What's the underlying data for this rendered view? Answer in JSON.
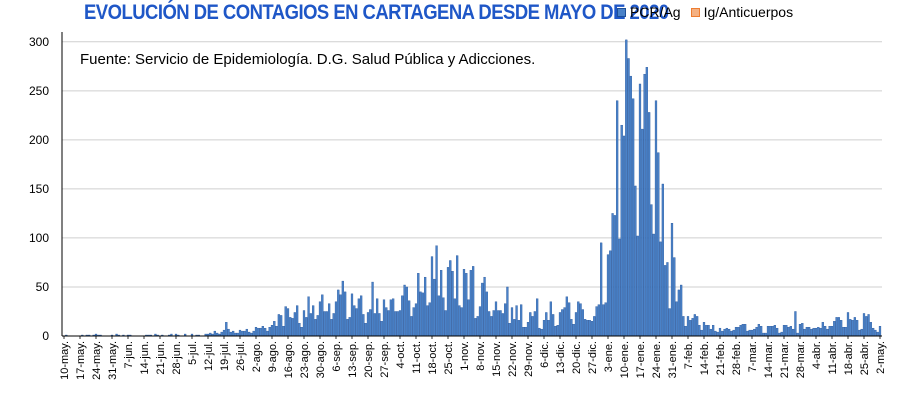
{
  "chart_data": {
    "type": "bar",
    "title": "EVOLUCIÓN DE CONTAGIOS EN CARTAGENA DESDE MAYO DE 2020",
    "annotation": "Fuente: Servicio de Epidemiología. D.G. Salud Pública y Adicciones.",
    "xlabel": "",
    "ylabel": "",
    "ylim": [
      0,
      310
    ],
    "yticks": [
      0,
      50,
      100,
      150,
      200,
      250,
      300
    ],
    "grid": true,
    "legend_position": "top-right",
    "x_start": "2020-05-10",
    "x_end": "2021-05-02",
    "tick_labels": [
      "10-may.",
      "17-may.",
      "24-may.",
      "31-may.",
      "7-jun.",
      "14-jun.",
      "21-jun.",
      "28-jun.",
      "5-jul.",
      "12-jul.",
      "19-jul.",
      "26-jul.",
      "2-ago.",
      "9-ago.",
      "16-ago.",
      "23-ago.",
      "30-ago.",
      "6-sep.",
      "13-sep.",
      "20-sep.",
      "27-sep.",
      "4-oct.",
      "11-oct.",
      "18-oct.",
      "25-oct.",
      "1-nov.",
      "8-nov.",
      "15-nov.",
      "22-nov.",
      "29-nov.",
      "6-dic.",
      "13-dic.",
      "20-dic.",
      "27-dic.",
      "3-ene.",
      "10-ene.",
      "17-ene.",
      "24-ene.",
      "31-ene.",
      "7-feb.",
      "14-feb.",
      "21-feb.",
      "28-feb.",
      "7-mar.",
      "14-mar.",
      "21-mar.",
      "28-mar.",
      "4-abr.",
      "11-abr.",
      "18-abr.",
      "25-abr.",
      "2-may."
    ],
    "weekly_anchors": [
      1,
      1,
      1,
      1,
      1,
      1,
      1,
      2,
      2,
      3,
      6,
      6,
      8,
      14,
      24,
      30,
      32,
      38,
      35,
      33,
      38,
      36,
      52,
      65,
      70,
      58,
      50,
      40,
      28,
      22,
      25,
      30,
      32,
      25,
      70,
      215,
      235,
      190,
      75,
      25,
      12,
      10,
      9,
      10,
      9,
      10,
      10,
      12,
      14,
      16,
      18,
      8
    ],
    "peaks": [
      {
        "date": "2020-07-20",
        "value": 14
      },
      {
        "date": "2020-08-15",
        "value": 30
      },
      {
        "date": "2020-09-09",
        "value": 56
      },
      {
        "date": "2020-09-22",
        "value": 55
      },
      {
        "date": "2020-10-06",
        "value": 52
      },
      {
        "date": "2020-10-20",
        "value": 92
      },
      {
        "date": "2020-10-29",
        "value": 82
      },
      {
        "date": "2020-11-05",
        "value": 71
      },
      {
        "date": "2020-11-10",
        "value": 60
      },
      {
        "date": "2020-11-20",
        "value": 50
      },
      {
        "date": "2020-12-03",
        "value": 38
      },
      {
        "date": "2020-12-31",
        "value": 95
      },
      {
        "date": "2021-01-05",
        "value": 125
      },
      {
        "date": "2021-01-07",
        "value": 240
      },
      {
        "date": "2021-01-09",
        "value": 215
      },
      {
        "date": "2021-01-11",
        "value": 302
      },
      {
        "date": "2021-01-12",
        "value": 283
      },
      {
        "date": "2021-01-13",
        "value": 265
      },
      {
        "date": "2021-01-17",
        "value": 257
      },
      {
        "date": "2021-01-19",
        "value": 267
      },
      {
        "date": "2021-01-21",
        "value": 228
      },
      {
        "date": "2021-01-24",
        "value": 240
      },
      {
        "date": "2021-01-27",
        "value": 155
      },
      {
        "date": "2021-01-31",
        "value": 115
      },
      {
        "date": "2021-02-04",
        "value": 52
      },
      {
        "date": "2021-03-26",
        "value": 25
      },
      {
        "date": "2021-04-18",
        "value": 24
      },
      {
        "date": "2021-04-27",
        "value": 22
      }
    ],
    "series": [
      {
        "name": "PCR/Ag",
        "color": "#4a82c8",
        "edge_color": "#1f4f96"
      },
      {
        "name": "Ig/Anticuerpos",
        "color": "#f4b183",
        "edge_color": "#ed7d31"
      }
    ]
  }
}
